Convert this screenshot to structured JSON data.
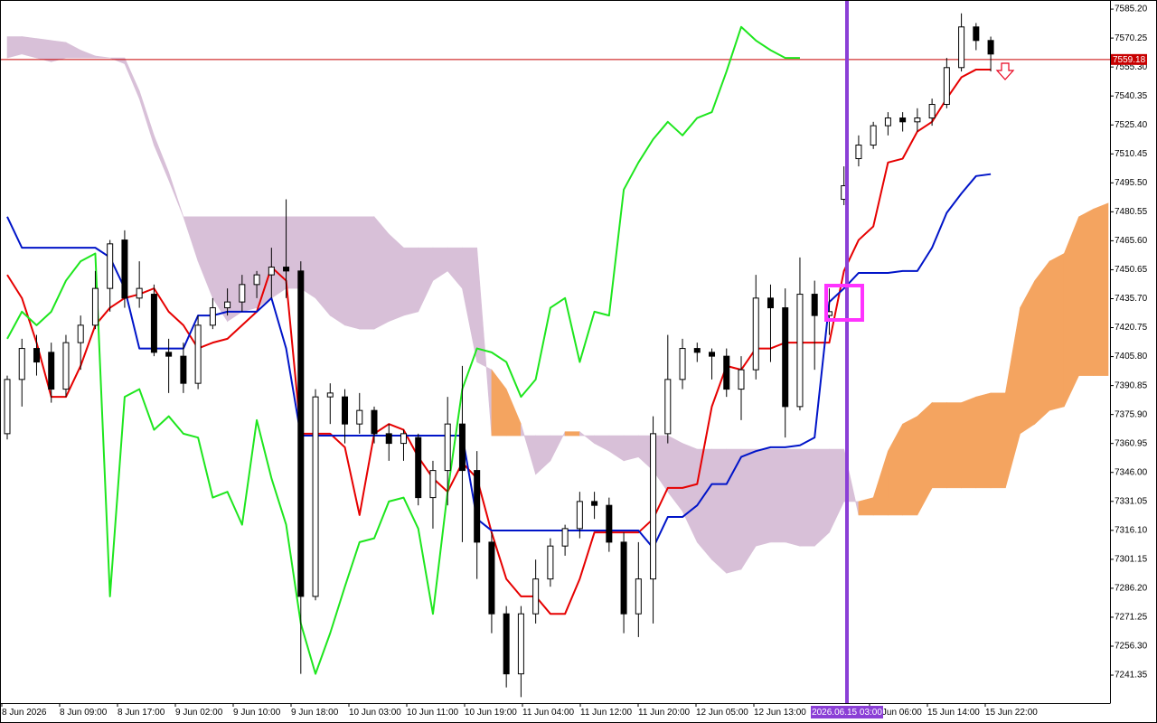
{
  "chart_data": {
    "type": "candlestick",
    "ylim": [
      7226.9,
      7589.9
    ],
    "yticks": [
      {
        "value": 7585.2,
        "label": "7585.20"
      },
      {
        "value": 7570.25,
        "label": "7570.25"
      },
      {
        "value": 7555.3,
        "label": "7555.30"
      },
      {
        "value": 7540.35,
        "label": "7540.35"
      },
      {
        "value": 7525.4,
        "label": "7525.40"
      },
      {
        "value": 7510.45,
        "label": "7510.45"
      },
      {
        "value": 7495.5,
        "label": "7495.50"
      },
      {
        "value": 7480.55,
        "label": "7480.55"
      },
      {
        "value": 7465.6,
        "label": "7465.60"
      },
      {
        "value": 7450.65,
        "label": "7450.65"
      },
      {
        "value": 7435.7,
        "label": "7435.70"
      },
      {
        "value": 7420.75,
        "label": "7420.75"
      },
      {
        "value": 7405.8,
        "label": "7405.80"
      },
      {
        "value": 7390.85,
        "label": "7390.85"
      },
      {
        "value": 7375.9,
        "label": "7375.90"
      },
      {
        "value": 7360.95,
        "label": "7360.95"
      },
      {
        "value": 7346,
        "label": "7346.00"
      },
      {
        "value": 7331.05,
        "label": "7331.05"
      },
      {
        "value": 7316.1,
        "label": "7316.10"
      },
      {
        "value": 7301.15,
        "label": "7301.15"
      },
      {
        "value": 7286.2,
        "label": "7286.20"
      },
      {
        "value": 7271.25,
        "label": "7271.25"
      },
      {
        "value": 7256.3,
        "label": "7256.30"
      },
      {
        "value": 7241.35,
        "label": "7241.35"
      }
    ],
    "x_labels": [
      "8 Jun 2026",
      "8 Jun 09:00",
      "8 Jun 17:00",
      "9 Jun 02:00",
      "9 Jun 10:00",
      "9 Jun 18:00",
      "10 Jun 03:00",
      "10 Jun 11:00",
      "10 Jun 19:00",
      "11 Jun 04:00",
      "11 Jun 12:00",
      "11 Jun 20:00",
      "12 Jun 05:00",
      "12 Jun 13:00",
      null,
      "15 Jun 06:00",
      "15 Jun 14:00",
      "15 Jun 22:00"
    ],
    "candles": {
      "up_color": "#ffffff",
      "down_color": "#000000",
      "open": [
        7366,
        7394,
        7410,
        7408,
        7389,
        7413,
        7422,
        7441,
        7466,
        7436,
        7438,
        7408,
        7406,
        7392,
        7422,
        7431,
        7434,
        7443,
        7448,
        7452,
        7450,
        7282,
        7385,
        7385,
        7371,
        7378,
        7366,
        7361,
        7364,
        7333,
        7347,
        7371,
        7347,
        7310,
        7273,
        7242,
        7273,
        7291,
        7308,
        7317,
        7331,
        7329,
        7310,
        7273,
        7291,
        7366,
        7394,
        7410,
        7408,
        7406,
        7389,
        7399,
        7436,
        7431,
        7380,
        7438,
        7427,
        7487,
        7508,
        7515,
        7525,
        7529,
        7527,
        7529,
        7536,
        7555,
        7576,
        7569
      ],
      "high": [
        7396,
        7415,
        7417,
        7413,
        7417,
        7427,
        7450,
        7466,
        7471,
        7455,
        7443,
        7415,
        7413,
        7427,
        7436,
        7441,
        7448,
        7450,
        7462,
        7487,
        7455,
        7389,
        7392,
        7389,
        7387,
        7380,
        7371,
        7368,
        7366,
        7352,
        7385,
        7401,
        7357,
        7315,
        7277,
        7277,
        7301,
        7312,
        7319,
        7336,
        7336,
        7333,
        7315,
        7310,
        7375,
        7417,
        7415,
        7413,
        7410,
        7410,
        7406,
        7448,
        7443,
        7441,
        7457,
        7445,
        7441,
        7504,
        7520,
        7527,
        7532,
        7532,
        7534,
        7539,
        7560,
        7583,
        7578,
        7571
      ],
      "low": [
        7363,
        7380,
        7396,
        7382,
        7385,
        7399,
        7420,
        7429,
        7431,
        7431,
        7406,
        7387,
        7387,
        7389,
        7420,
        7427,
        7429,
        7436,
        7436,
        7436,
        7242,
        7280,
        7371,
        7361,
        7366,
        7361,
        7352,
        7352,
        7329,
        7317,
        7329,
        7310,
        7291,
        7263,
        7235,
        7230,
        7268,
        7287,
        7303,
        7312,
        7322,
        7305,
        7263,
        7261,
        7268,
        7361,
        7389,
        7403,
        7394,
        7385,
        7373,
        7394,
        7403,
        7364,
        7378,
        7399,
        7417,
        7484,
        7504,
        7513,
        7520,
        7522,
        7522,
        7525,
        7534,
        7553,
        7564,
        7553
      ],
      "close": [
        7394,
        7410,
        7403,
        7389,
        7413,
        7422,
        7441,
        7464,
        7436,
        7441,
        7408,
        7406,
        7392,
        7422,
        7431,
        7434,
        7443,
        7448,
        7452,
        7450,
        7282,
        7385,
        7387,
        7371,
        7378,
        7366,
        7361,
        7366,
        7333,
        7347,
        7371,
        7347,
        7310,
        7273,
        7242,
        7273,
        7291,
        7308,
        7317,
        7331,
        7329,
        7310,
        7273,
        7291,
        7366,
        7394,
        7410,
        7408,
        7406,
        7389,
        7399,
        7436,
        7431,
        7380,
        7438,
        7427,
        7429,
        7494,
        7515,
        7525,
        7529,
        7527,
        7529,
        7536,
        7555,
        7576,
        7569,
        7562
      ]
    },
    "series": [
      {
        "color": "#e60000",
        "values": [
          7448,
          7436,
          7413,
          7385,
          7385,
          7401,
          7422,
          7431,
          7436,
          7438,
          7441,
          7429,
          7422,
          7410,
          7413,
          7415,
          7422,
          7429,
          7452,
          7445,
          7366,
          7366,
          7366,
          7359,
          7324,
          7366,
          7371,
          7368,
          7354,
          7343,
          7336,
          7351,
          7343,
          7315,
          7291,
          7282,
          7282,
          7273,
          7273,
          7291,
          7315,
          7315,
          7315,
          7315,
          7322,
          7338,
          7338,
          7340,
          7380,
          7401,
          7399,
          7410,
          7410,
          7413,
          7413,
          7413,
          7413,
          7450,
          7466,
          7473,
          7506,
          7508,
          7522,
          7527,
          7539,
          7550,
          7554,
          7554
        ]
      },
      {
        "color": "#0014c8",
        "values": [
          7478,
          7462,
          7462,
          7462,
          7462,
          7462,
          7462,
          7457,
          7441,
          7410,
          7410,
          7410,
          7410,
          7427,
          7427,
          7429,
          7429,
          7429,
          7436,
          7410,
          7365,
          7365,
          7365,
          7365,
          7365,
          7365,
          7365,
          7365,
          7365,
          7365,
          7365,
          7365,
          7322,
          7316,
          7316,
          7316,
          7316,
          7316,
          7316,
          7316,
          7316,
          7316,
          7316,
          7316,
          7307,
          7323,
          7323,
          7329,
          7340,
          7340,
          7354,
          7357,
          7359,
          7359,
          7360,
          7364,
          7434,
          7441,
          7449,
          7449,
          7449,
          7450,
          7450,
          7462,
          7480,
          7490,
          7499,
          7500
        ]
      },
      {
        "color": "#1ee61e",
        "values": [
          7415,
          7429,
          7422,
          7429,
          7445,
          7455,
          7459,
          7282,
          7385,
          7389,
          7368,
          7375,
          7366,
          7364,
          7333,
          7336,
          7319,
          7373,
          7343,
          7319,
          7268,
          7242,
          7263,
          7287,
          7310,
          7312,
          7331,
          7333,
          7317,
          7273,
          7336,
          7389,
          7410,
          7408,
          7403,
          7385,
          7394,
          7431,
          7436,
          7403,
          7429,
          7427,
          7492,
          7506,
          7518,
          7527,
          7520,
          7529,
          7532,
          7553,
          7576,
          7569,
          7564,
          7560,
          7560,
          null,
          null,
          null,
          null,
          null,
          null,
          null,
          null,
          null,
          null,
          null,
          null,
          null
        ]
      }
    ],
    "cloud": {
      "up_color": "#f4a460",
      "down_color": "#d8c0d8",
      "span_a": [
        7560,
        7562,
        7560,
        7558,
        7560,
        7560,
        7560,
        7560,
        7557,
        7539,
        7515,
        7497,
        7478,
        7455,
        7436,
        7424,
        7429,
        7431,
        7436,
        7441,
        7441,
        7436,
        7427,
        7422,
        7420,
        7420,
        7424,
        7427,
        7429,
        7445,
        7450,
        7441,
        7403,
        7399,
        7389,
        7371,
        7345,
        7352,
        7367,
        7367,
        7361,
        7357,
        7352,
        7354,
        7347,
        7336,
        7326,
        7310,
        7301,
        7294,
        7296,
        7308,
        7310,
        7310,
        7308,
        7308,
        7315,
        7331,
        7331,
        7333,
        7357,
        7371,
        7375,
        7382,
        7382,
        7382,
        7385,
        7387,
        7387,
        7431,
        7445,
        7455,
        7459,
        7478,
        7482,
        7485
      ],
      "span_b": [
        7571,
        7571,
        7570,
        7569,
        7568,
        7564,
        7561,
        7560,
        7560,
        7543,
        7520,
        7501,
        7478,
        7478,
        7478,
        7478,
        7478,
        7478,
        7478,
        7478,
        7478,
        7478,
        7478,
        7478,
        7478,
        7478,
        7469,
        7462,
        7462,
        7462,
        7462,
        7462,
        7462,
        7365,
        7365,
        7365,
        7365,
        7365,
        7365,
        7365,
        7365,
        7365,
        7365,
        7365,
        7365,
        7365,
        7361,
        7358,
        7358,
        7358,
        7358,
        7358,
        7358,
        7358,
        7358,
        7358,
        7358,
        7358,
        7324,
        7324,
        7324,
        7324,
        7324,
        7338,
        7338,
        7338,
        7338,
        7338,
        7338,
        7366,
        7371,
        7378,
        7380,
        7396,
        7396,
        7396
      ]
    },
    "price_line": {
      "value": 7559.18,
      "color": "#c80000"
    },
    "cursor_label": "2026.06.15 03:00",
    "cursor_color": "#8b3fd6"
  }
}
